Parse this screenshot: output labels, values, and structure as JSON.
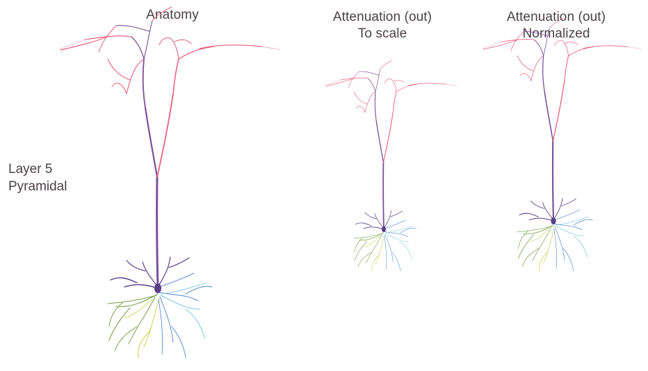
{
  "panels": [
    {
      "id": "anatomy",
      "title_lines": [
        "Anatomy"
      ]
    },
    {
      "id": "to-scale",
      "title_lines": [
        "Attenuation (out)",
        "To scale"
      ]
    },
    {
      "id": "normalized",
      "title_lines": [
        "Attenuation (out)",
        "Normalized"
      ]
    }
  ],
  "row_label_lines": [
    "Layer 5",
    "Pyramidal"
  ],
  "colors": {
    "text": "#4a3f45",
    "apical_tuft": "#e8607e",
    "apical_trunk": "#7a4f9a",
    "soma": "#5a3f8a",
    "basal_blue": "#5a8fd0",
    "basal_cyan": "#78c4e0",
    "basal_green": "#7aa04a",
    "basal_yellow": "#c9d14a",
    "faint_pink": "#f2b0c0"
  }
}
